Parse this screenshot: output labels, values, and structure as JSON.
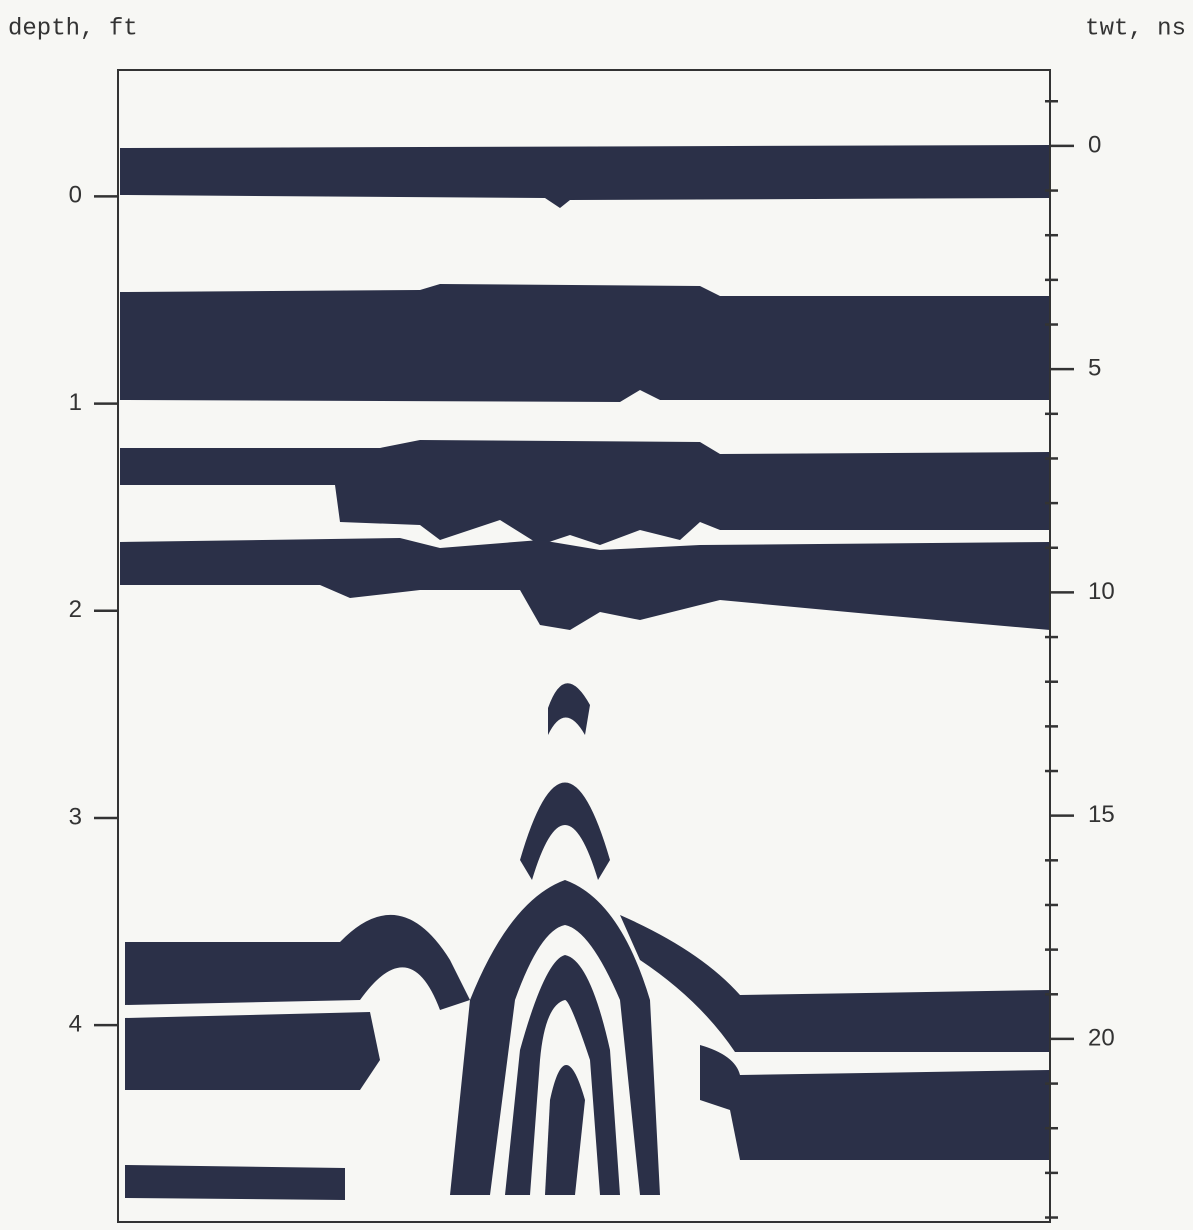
{
  "chart_data": {
    "type": "radargram",
    "ylabel": "depth, ft",
    "y2label": "twt, ns",
    "ylim": [
      -0.61,
      4.95
    ],
    "yticks": [
      0,
      1,
      2,
      3,
      4
    ],
    "y2lim": [
      -1.7,
      24.1
    ],
    "y2ticks": [
      0,
      5,
      10,
      15,
      20
    ],
    "y2minor_ticks": [
      -1,
      1,
      2,
      3,
      4,
      6,
      7,
      8,
      9,
      11,
      12,
      13,
      14,
      16,
      17,
      18,
      19,
      21,
      22,
      23,
      24
    ],
    "color": "#2b3048"
  }
}
